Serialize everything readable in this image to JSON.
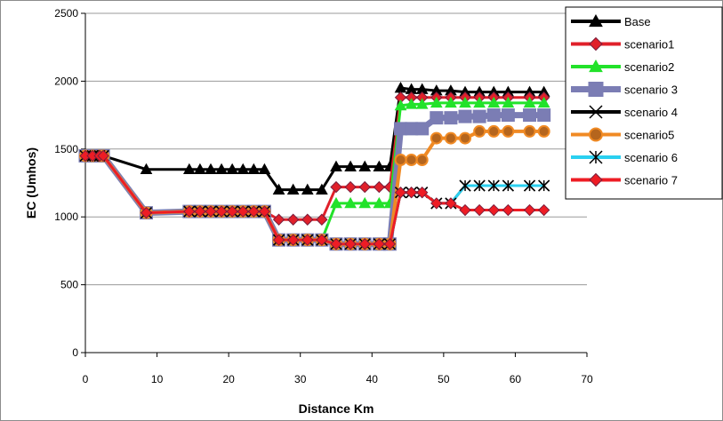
{
  "chart_data": {
    "type": "line",
    "title": "",
    "xlabel": "Distance Km",
    "ylabel": "EC (Umhos)",
    "xlim": [
      0,
      70
    ],
    "ylim": [
      0,
      2500
    ],
    "xticks": [
      "0",
      "10",
      "20",
      "30",
      "40",
      "50",
      "60",
      "70"
    ],
    "yticks": [
      "0",
      "500",
      "1000",
      "1500",
      "2000",
      "2500"
    ],
    "grid": "horizontal",
    "legend_position": "top-right",
    "series": [
      {
        "name": "Base",
        "color": "#000000",
        "marker": "triangle",
        "points": [
          [
            0,
            1450
          ],
          [
            1,
            1450
          ],
          [
            2,
            1450
          ],
          [
            2.5,
            1450
          ],
          [
            8.5,
            1350
          ],
          [
            14.5,
            1350
          ],
          [
            16,
            1350
          ],
          [
            17.5,
            1350
          ],
          [
            19,
            1350
          ],
          [
            20.5,
            1350
          ],
          [
            22,
            1350
          ],
          [
            23.5,
            1350
          ],
          [
            25,
            1350
          ],
          [
            27,
            1200
          ],
          [
            29,
            1200
          ],
          [
            31,
            1200
          ],
          [
            33,
            1200
          ],
          [
            35,
            1370
          ],
          [
            37,
            1370
          ],
          [
            39,
            1370
          ],
          [
            41,
            1370
          ],
          [
            42.5,
            1370
          ],
          [
            44,
            1950
          ],
          [
            45.5,
            1940
          ],
          [
            47,
            1940
          ],
          [
            49,
            1930
          ],
          [
            51,
            1930
          ],
          [
            53,
            1920
          ],
          [
            55,
            1920
          ],
          [
            57,
            1920
          ],
          [
            59,
            1920
          ],
          [
            62,
            1920
          ],
          [
            64,
            1920
          ]
        ]
      },
      {
        "name": "scenario1",
        "color": "#e0202a",
        "marker": "diamond",
        "points": [
          [
            0,
            1450
          ],
          [
            1,
            1450
          ],
          [
            2,
            1450
          ],
          [
            2.5,
            1450
          ],
          [
            8.5,
            1030
          ],
          [
            14.5,
            1040
          ],
          [
            16,
            1040
          ],
          [
            17.5,
            1040
          ],
          [
            19,
            1040
          ],
          [
            20.5,
            1040
          ],
          [
            22,
            1040
          ],
          [
            23.5,
            1040
          ],
          [
            25,
            1040
          ],
          [
            27,
            980
          ],
          [
            29,
            980
          ],
          [
            31,
            980
          ],
          [
            33,
            980
          ],
          [
            35,
            1220
          ],
          [
            37,
            1220
          ],
          [
            39,
            1220
          ],
          [
            41,
            1220
          ],
          [
            42.5,
            1220
          ],
          [
            44,
            1880
          ],
          [
            45.5,
            1880
          ],
          [
            47,
            1880
          ],
          [
            49,
            1880
          ],
          [
            51,
            1880
          ],
          [
            53,
            1880
          ],
          [
            55,
            1880
          ],
          [
            57,
            1880
          ],
          [
            59,
            1880
          ],
          [
            62,
            1880
          ],
          [
            64,
            1880
          ]
        ]
      },
      {
        "name": "scenario2",
        "color": "#22e22a",
        "marker": "triangle",
        "points": [
          [
            0,
            1450
          ],
          [
            1,
            1450
          ],
          [
            2,
            1450
          ],
          [
            2.5,
            1450
          ],
          [
            8.5,
            1030
          ],
          [
            14.5,
            1040
          ],
          [
            16,
            1040
          ],
          [
            17.5,
            1040
          ],
          [
            19,
            1040
          ],
          [
            20.5,
            1040
          ],
          [
            22,
            1040
          ],
          [
            23.5,
            1040
          ],
          [
            25,
            1040
          ],
          [
            27,
            830
          ],
          [
            29,
            830
          ],
          [
            31,
            830
          ],
          [
            33,
            830
          ],
          [
            35,
            1100
          ],
          [
            37,
            1100
          ],
          [
            39,
            1100
          ],
          [
            41,
            1100
          ],
          [
            42.5,
            1100
          ],
          [
            44,
            1820
          ],
          [
            45.5,
            1830
          ],
          [
            47,
            1830
          ],
          [
            49,
            1840
          ],
          [
            51,
            1840
          ],
          [
            53,
            1840
          ],
          [
            55,
            1840
          ],
          [
            57,
            1840
          ],
          [
            59,
            1840
          ],
          [
            62,
            1840
          ],
          [
            64,
            1840
          ]
        ]
      },
      {
        "name": "scenario 3",
        "color": "#7b7db4",
        "marker": "square",
        "points": [
          [
            0,
            1450
          ],
          [
            1,
            1450
          ],
          [
            2,
            1450
          ],
          [
            2.5,
            1450
          ],
          [
            8.5,
            1030
          ],
          [
            14.5,
            1040
          ],
          [
            16,
            1040
          ],
          [
            17.5,
            1040
          ],
          [
            19,
            1040
          ],
          [
            20.5,
            1040
          ],
          [
            22,
            1040
          ],
          [
            23.5,
            1040
          ],
          [
            25,
            1040
          ],
          [
            27,
            830
          ],
          [
            29,
            830
          ],
          [
            31,
            830
          ],
          [
            33,
            830
          ],
          [
            35,
            800
          ],
          [
            37,
            800
          ],
          [
            39,
            800
          ],
          [
            41,
            800
          ],
          [
            42.5,
            800
          ],
          [
            44,
            1650
          ],
          [
            45.5,
            1650
          ],
          [
            47,
            1650
          ],
          [
            49,
            1730
          ],
          [
            51,
            1730
          ],
          [
            53,
            1740
          ],
          [
            55,
            1740
          ],
          [
            57,
            1750
          ],
          [
            59,
            1750
          ],
          [
            62,
            1750
          ],
          [
            64,
            1750
          ]
        ]
      },
      {
        "name": "scenario 4",
        "color": "#000000",
        "marker": "x",
        "points": [
          [
            0,
            1450
          ],
          [
            1,
            1450
          ],
          [
            2,
            1450
          ],
          [
            2.5,
            1450
          ],
          [
            8.5,
            1030
          ],
          [
            14.5,
            1040
          ],
          [
            16,
            1040
          ],
          [
            17.5,
            1040
          ],
          [
            19,
            1040
          ],
          [
            20.5,
            1040
          ],
          [
            22,
            1040
          ],
          [
            23.5,
            1040
          ],
          [
            25,
            1040
          ],
          [
            27,
            830
          ],
          [
            29,
            830
          ],
          [
            31,
            830
          ],
          [
            33,
            830
          ],
          [
            35,
            800
          ],
          [
            37,
            800
          ],
          [
            39,
            800
          ],
          [
            41,
            800
          ],
          [
            42.5,
            800
          ],
          [
            44,
            1180
          ],
          [
            45.5,
            1180
          ],
          [
            47,
            1180
          ],
          [
            49,
            1100
          ],
          [
            51,
            1100
          ],
          [
            53,
            1230
          ],
          [
            55,
            1230
          ],
          [
            57,
            1230
          ],
          [
            59,
            1230
          ],
          [
            62,
            1230
          ],
          [
            64,
            1230
          ]
        ]
      },
      {
        "name": "scenario5",
        "color": "#f08a24",
        "marker": "circle",
        "points": [
          [
            0,
            1450
          ],
          [
            1,
            1450
          ],
          [
            2,
            1450
          ],
          [
            2.5,
            1450
          ],
          [
            8.5,
            1030
          ],
          [
            14.5,
            1040
          ],
          [
            16,
            1040
          ],
          [
            17.5,
            1040
          ],
          [
            19,
            1040
          ],
          [
            20.5,
            1040
          ],
          [
            22,
            1040
          ],
          [
            23.5,
            1040
          ],
          [
            25,
            1040
          ],
          [
            27,
            830
          ],
          [
            29,
            830
          ],
          [
            31,
            830
          ],
          [
            33,
            830
          ],
          [
            35,
            800
          ],
          [
            37,
            800
          ],
          [
            39,
            800
          ],
          [
            41,
            800
          ],
          [
            42.5,
            800
          ],
          [
            44,
            1420
          ],
          [
            45.5,
            1420
          ],
          [
            47,
            1420
          ],
          [
            49,
            1580
          ],
          [
            51,
            1580
          ],
          [
            53,
            1580
          ],
          [
            55,
            1630
          ],
          [
            57,
            1630
          ],
          [
            59,
            1630
          ],
          [
            62,
            1630
          ],
          [
            64,
            1630
          ]
        ]
      },
      {
        "name": "scenario 6",
        "color": "#2ad0f0",
        "marker": "asterisk",
        "points": [
          [
            0,
            1450
          ],
          [
            1,
            1450
          ],
          [
            2,
            1450
          ],
          [
            2.5,
            1450
          ],
          [
            8.5,
            1030
          ],
          [
            14.5,
            1040
          ],
          [
            16,
            1040
          ],
          [
            17.5,
            1040
          ],
          [
            19,
            1040
          ],
          [
            20.5,
            1040
          ],
          [
            22,
            1040
          ],
          [
            23.5,
            1040
          ],
          [
            25,
            1040
          ],
          [
            27,
            830
          ],
          [
            29,
            830
          ],
          [
            31,
            830
          ],
          [
            33,
            830
          ],
          [
            35,
            800
          ],
          [
            37,
            800
          ],
          [
            39,
            800
          ],
          [
            41,
            800
          ],
          [
            42.5,
            800
          ],
          [
            44,
            1180
          ],
          [
            45.5,
            1180
          ],
          [
            47,
            1180
          ],
          [
            49,
            1100
          ],
          [
            51,
            1100
          ],
          [
            53,
            1230
          ],
          [
            55,
            1230
          ],
          [
            57,
            1230
          ],
          [
            59,
            1230
          ],
          [
            62,
            1230
          ],
          [
            64,
            1230
          ]
        ]
      },
      {
        "name": "scenario 7",
        "color": "#ee1c24",
        "marker": "diamond",
        "points": [
          [
            0,
            1450
          ],
          [
            1,
            1450
          ],
          [
            2,
            1450
          ],
          [
            2.5,
            1450
          ],
          [
            8.5,
            1030
          ],
          [
            14.5,
            1040
          ],
          [
            16,
            1040
          ],
          [
            17.5,
            1040
          ],
          [
            19,
            1040
          ],
          [
            20.5,
            1040
          ],
          [
            22,
            1040
          ],
          [
            23.5,
            1040
          ],
          [
            25,
            1040
          ],
          [
            27,
            830
          ],
          [
            29,
            830
          ],
          [
            31,
            830
          ],
          [
            33,
            830
          ],
          [
            35,
            800
          ],
          [
            37,
            800
          ],
          [
            39,
            800
          ],
          [
            41,
            800
          ],
          [
            42.5,
            800
          ],
          [
            44,
            1180
          ],
          [
            45.5,
            1180
          ],
          [
            47,
            1180
          ],
          [
            49,
            1100
          ],
          [
            51,
            1100
          ],
          [
            53,
            1050
          ],
          [
            55,
            1050
          ],
          [
            57,
            1050
          ],
          [
            59,
            1050
          ],
          [
            62,
            1050
          ],
          [
            64,
            1050
          ]
        ]
      }
    ]
  }
}
